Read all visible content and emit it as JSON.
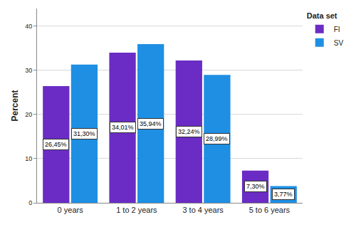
{
  "chart_data": {
    "type": "bar",
    "y_label": "Percent",
    "legend_title": "Data set",
    "categories": [
      "0 years",
      "1 to 2 years",
      "3 to 4 years",
      "5 to 6 years"
    ],
    "series": [
      {
        "name": "FI",
        "color": "#6a2cc4",
        "values": [
          26.45,
          34.01,
          32.24,
          7.3
        ],
        "value_labels": [
          "26,45%",
          "34,01%",
          "32,24%",
          "7,30%"
        ]
      },
      {
        "name": "SV",
        "color": "#1e8fe3",
        "values": [
          31.3,
          35.94,
          28.99,
          3.77
        ],
        "value_labels": [
          "31,30%",
          "35,94%",
          "28,99%",
          "3,77%"
        ]
      }
    ],
    "ylim": [
      0,
      44
    ],
    "yticks": [
      0,
      10,
      20,
      30,
      40
    ],
    "grid": true,
    "legend": "top-right",
    "data_labels": true
  }
}
